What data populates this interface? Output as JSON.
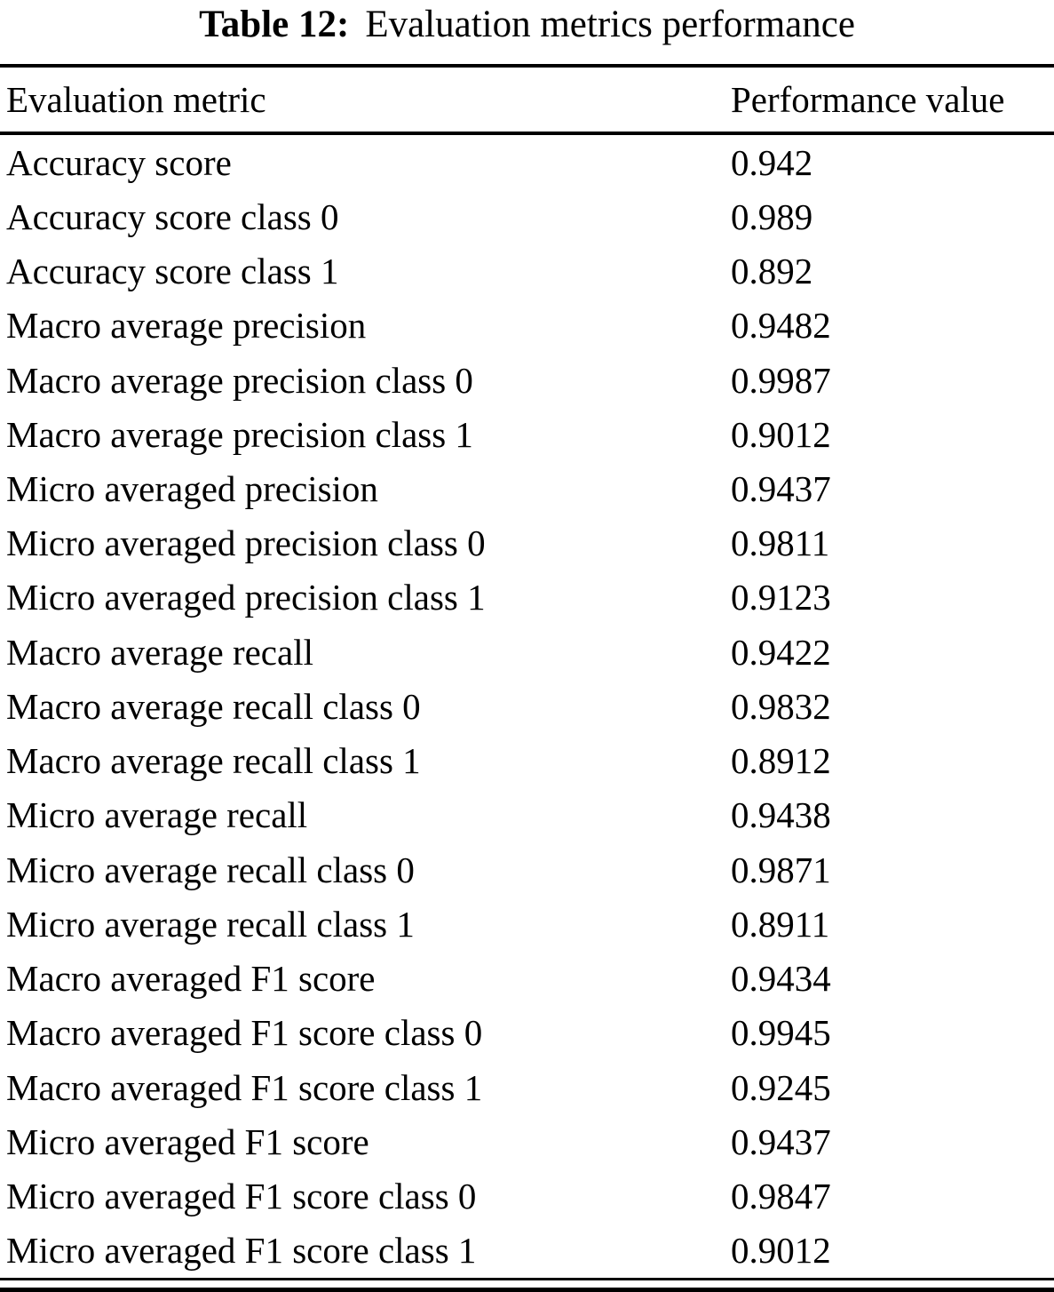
{
  "caption": {
    "label": "Table 12:",
    "title": "Evaluation metrics performance"
  },
  "columns": [
    "Evaluation metric",
    "Performance value"
  ],
  "rows": [
    {
      "metric": "Accuracy score",
      "value": "0.942"
    },
    {
      "metric": "Accuracy score class 0",
      "value": "0.989"
    },
    {
      "metric": "Accuracy score class 1",
      "value": "0.892"
    },
    {
      "metric": "Macro average precision",
      "value": "0.9482"
    },
    {
      "metric": "Macro average precision class 0",
      "value": "0.9987"
    },
    {
      "metric": "Macro average precision class 1",
      "value": "0.9012"
    },
    {
      "metric": "Micro averaged precision",
      "value": "0.9437"
    },
    {
      "metric": "Micro averaged precision class 0",
      "value": "0.9811"
    },
    {
      "metric": "Micro averaged precision class 1",
      "value": "0.9123"
    },
    {
      "metric": "Macro average recall",
      "value": "0.9422"
    },
    {
      "metric": "Macro average recall class 0",
      "value": "0.9832"
    },
    {
      "metric": "Macro average recall class 1",
      "value": "0.8912"
    },
    {
      "metric": "Micro average recall",
      "value": "0.9438"
    },
    {
      "metric": "Micro average recall class 0",
      "value": "0.9871"
    },
    {
      "metric": "Micro average recall class 1",
      "value": "0.8911"
    },
    {
      "metric": "Macro averaged F1 score",
      "value": "0.9434"
    },
    {
      "metric": "Macro averaged F1 score class 0",
      "value": "0.9945"
    },
    {
      "metric": "Macro averaged F1 score class 1",
      "value": "0.9245"
    },
    {
      "metric": "Micro averaged F1 score",
      "value": "0.9437"
    },
    {
      "metric": "Micro averaged F1 score class 0",
      "value": "0.9847"
    },
    {
      "metric": "Micro averaged F1 score class 1",
      "value": "0.9012"
    }
  ],
  "colors": {
    "text": "#000000",
    "background": "#ffffff",
    "rule": "#000000"
  }
}
